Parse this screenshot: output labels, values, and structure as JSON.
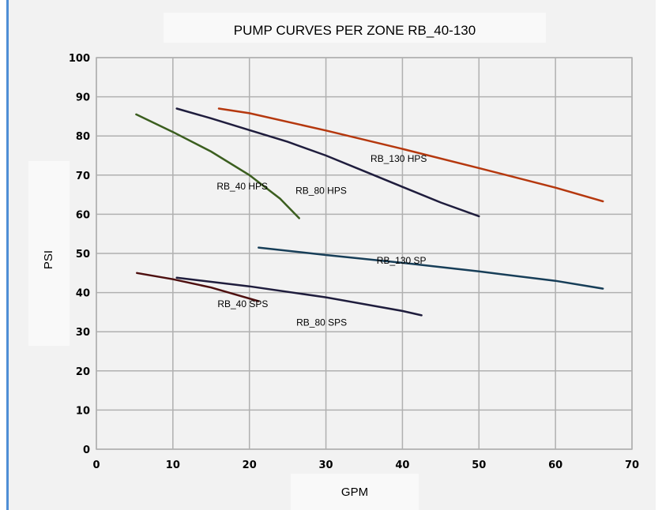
{
  "chart_data": {
    "type": "line",
    "title": "PUMP CURVES PER ZONE RB_40-130",
    "xlabel": "GPM",
    "ylabel": "PSI",
    "xlim": [
      0,
      70
    ],
    "ylim": [
      0,
      100
    ],
    "xticks": [
      0,
      10,
      20,
      30,
      40,
      50,
      60,
      70
    ],
    "yticks": [
      0,
      10,
      20,
      30,
      40,
      50,
      60,
      70,
      80,
      90,
      100
    ],
    "grid": true,
    "series": [
      {
        "name": "RB_40 HPS",
        "color": "#3b5e1f",
        "x": [
          5.2,
          10,
          15,
          20,
          24,
          26.5
        ],
        "y": [
          85.5,
          81,
          76,
          70,
          64,
          59
        ]
      },
      {
        "name": "RB_80 HPS",
        "color": "#1f1d3d",
        "x": [
          10.5,
          15,
          20,
          25,
          30,
          35,
          40,
          45,
          50
        ],
        "y": [
          87,
          84.5,
          81.5,
          78.5,
          75,
          71,
          67,
          63,
          59.5
        ]
      },
      {
        "name": "RB_130 HPS",
        "color": "#b5380e",
        "x": [
          16,
          20,
          30,
          40,
          50,
          60,
          66.2
        ],
        "y": [
          87,
          85.8,
          81.4,
          76.7,
          71.8,
          66.8,
          63.3
        ]
      },
      {
        "name": "RB_130 SP",
        "color": "#173e58",
        "x": [
          21.2,
          30,
          40,
          50,
          60,
          66.2
        ],
        "y": [
          51.5,
          49.6,
          47.6,
          45.4,
          43,
          41
        ]
      },
      {
        "name": "RB_40 SPS",
        "color": "#4e1010",
        "x": [
          5.3,
          10,
          15,
          21.2
        ],
        "y": [
          45,
          43.4,
          41.3,
          37.8
        ]
      },
      {
        "name": "RB_80 SPS",
        "color": "#1f1d3d",
        "x": [
          10.5,
          20,
          30,
          40,
          42.5
        ],
        "y": [
          43.8,
          41.6,
          38.8,
          35.3,
          34.2
        ]
      }
    ]
  }
}
